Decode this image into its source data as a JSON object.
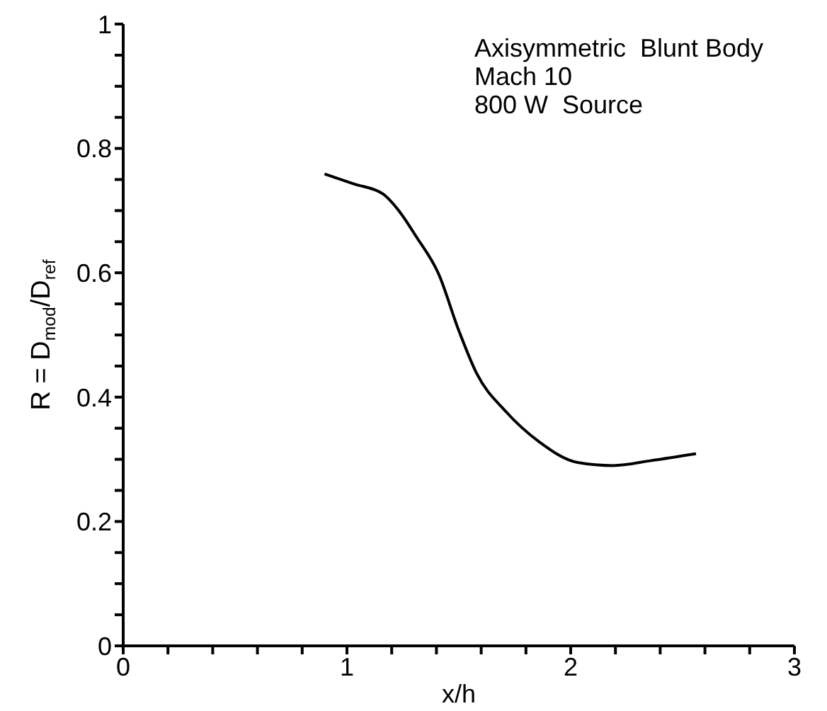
{
  "chart_data": {
    "type": "line",
    "xlabel": "x/h",
    "ylabel": "R = D$_{mod}$/D$_{ref}$",
    "annotations": [
      "Axisymmetric  Blunt Body",
      "Mach 10",
      "800 W  Source"
    ],
    "x": [
      0.9,
      1.03,
      1.16,
      1.24,
      1.31,
      1.41,
      1.5,
      1.58,
      1.71,
      1.86,
      2.03,
      2.19,
      2.36,
      2.56
    ],
    "series": [
      {
        "color": "#000000",
        "values": [
          0.759,
          0.743,
          0.727,
          0.696,
          0.658,
          0.598,
          0.507,
          0.438,
          0.377,
          0.328,
          0.295,
          0.29,
          0.298,
          0.309
        ]
      }
    ],
    "xlim": [
      0,
      3
    ],
    "xticks": [
      0,
      {
        "value": 0.2,
        "label": null
      },
      {
        "value": 0.4,
        "label": null
      },
      {
        "value": 0.6,
        "label": null
      },
      {
        "value": 0.8,
        "label": null
      },
      1,
      {
        "value": 1.2,
        "label": null
      },
      {
        "value": 1.4,
        "label": null
      },
      {
        "value": 1.6,
        "label": null
      },
      {
        "value": 1.8,
        "label": null
      },
      2,
      {
        "value": 2.2,
        "label": null
      },
      {
        "value": 2.4,
        "label": null
      },
      {
        "value": 2.6,
        "label": null
      },
      {
        "value": 2.8,
        "label": null
      },
      3
    ],
    "ylim": [
      0,
      1
    ],
    "yticks": [
      0,
      {
        "value": 0.05,
        "label": null
      },
      {
        "value": 0.1,
        "label": null
      },
      {
        "value": 0.15,
        "label": null
      },
      0.2,
      {
        "value": 0.25,
        "label": null
      },
      {
        "value": 0.3,
        "label": null
      },
      {
        "value": 0.35,
        "label": null
      },
      0.4,
      {
        "value": 0.45,
        "label": null
      },
      {
        "value": 0.5,
        "label": null
      },
      {
        "value": 0.55,
        "label": null
      },
      0.6,
      {
        "value": 0.65,
        "label": null
      },
      {
        "value": 0.7,
        "label": null
      },
      {
        "value": 0.75,
        "label": null
      },
      0.8,
      {
        "value": 0.85,
        "label": null
      },
      {
        "value": 0.9,
        "label": null
      },
      {
        "value": 0.95,
        "label": null
      },
      1
    ],
    "grid": false,
    "legend": false,
    "marker": "none",
    "line_style": "solid"
  }
}
